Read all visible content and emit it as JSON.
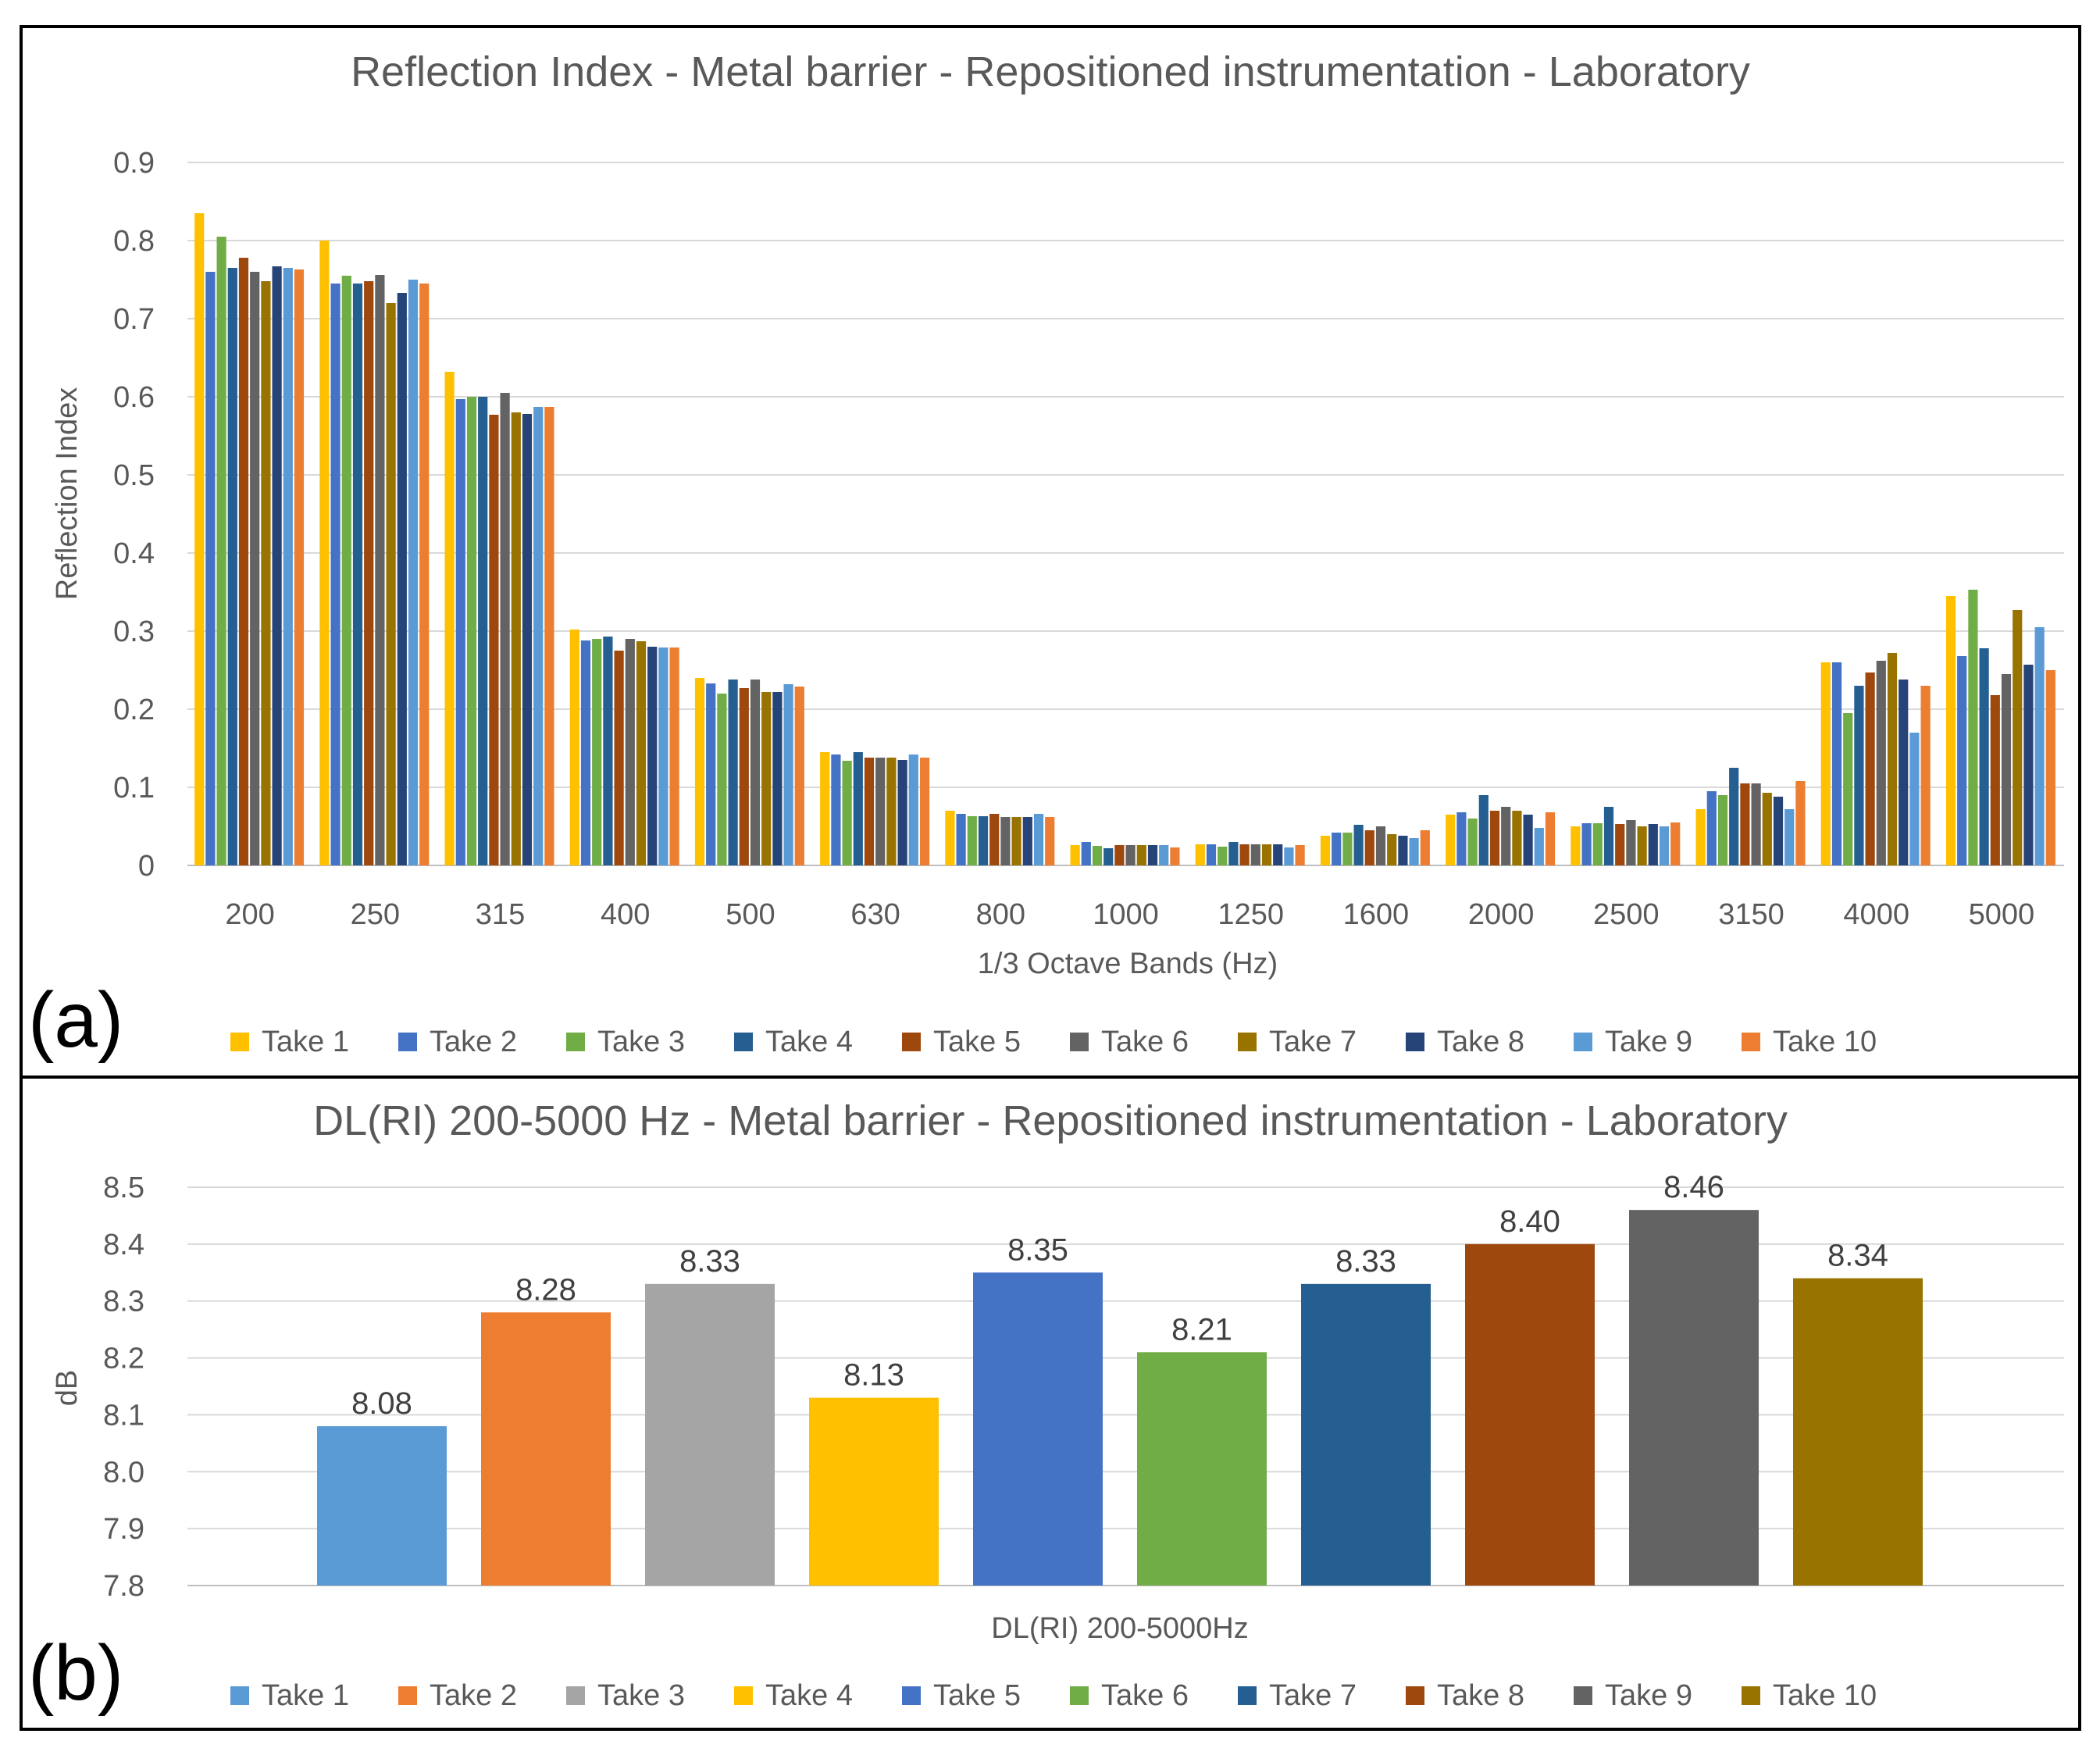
{
  "chart_data": [
    {
      "panel_label": "(a)",
      "type": "bar",
      "title": "Reflection Index - Metal barrier - Repositioned instrumentation - Laboratory",
      "xlabel": "1/3 Octave Bands (Hz)",
      "ylabel": "Reflection Index",
      "ylim": [
        0,
        0.9
      ],
      "yticks": [
        "0",
        "0.1",
        "0.2",
        "0.3",
        "0.4",
        "0.5",
        "0.6",
        "0.7",
        "0.8",
        "0.9"
      ],
      "grid": true,
      "legend_position": "bottom",
      "categories": [
        "200",
        "250",
        "315",
        "400",
        "500",
        "630",
        "800",
        "1000",
        "1250",
        "1600",
        "2000",
        "2500",
        "3150",
        "4000",
        "5000"
      ],
      "series": [
        {
          "name": "Take 1",
          "color": "#FFC000",
          "values": [
            0.835,
            0.8,
            0.632,
            0.302,
            0.24,
            0.145,
            0.07,
            0.026,
            0.027,
            0.038,
            0.065,
            0.05,
            0.072,
            0.26,
            0.345
          ]
        },
        {
          "name": "Take 2",
          "color": "#4472C4",
          "values": [
            0.76,
            0.745,
            0.597,
            0.288,
            0.233,
            0.142,
            0.066,
            0.03,
            0.027,
            0.042,
            0.068,
            0.054,
            0.095,
            0.26,
            0.268
          ]
        },
        {
          "name": "Take 3",
          "color": "#70AD47",
          "values": [
            0.805,
            0.755,
            0.6,
            0.29,
            0.22,
            0.134,
            0.063,
            0.025,
            0.024,
            0.042,
            0.06,
            0.054,
            0.09,
            0.195,
            0.353
          ]
        },
        {
          "name": "Take 4",
          "color": "#255E91",
          "values": [
            0.765,
            0.745,
            0.6,
            0.293,
            0.238,
            0.145,
            0.063,
            0.022,
            0.03,
            0.052,
            0.09,
            0.075,
            0.125,
            0.23,
            0.278
          ]
        },
        {
          "name": "Take 5",
          "color": "#9E480E",
          "values": [
            0.778,
            0.748,
            0.577,
            0.275,
            0.227,
            0.138,
            0.066,
            0.026,
            0.027,
            0.045,
            0.07,
            0.053,
            0.105,
            0.247,
            0.218
          ]
        },
        {
          "name": "Take 6",
          "color": "#636363",
          "values": [
            0.76,
            0.756,
            0.605,
            0.29,
            0.238,
            0.138,
            0.062,
            0.026,
            0.027,
            0.05,
            0.075,
            0.058,
            0.105,
            0.262,
            0.245
          ]
        },
        {
          "name": "Take 7",
          "color": "#997300",
          "values": [
            0.748,
            0.72,
            0.58,
            0.287,
            0.222,
            0.138,
            0.062,
            0.026,
            0.027,
            0.04,
            0.07,
            0.05,
            0.093,
            0.272,
            0.327
          ]
        },
        {
          "name": "Take 8",
          "color": "#264478",
          "values": [
            0.767,
            0.733,
            0.578,
            0.28,
            0.222,
            0.135,
            0.062,
            0.026,
            0.027,
            0.038,
            0.065,
            0.053,
            0.088,
            0.238,
            0.257
          ]
        },
        {
          "name": "Take 9",
          "color": "#5B9BD5",
          "values": [
            0.765,
            0.75,
            0.587,
            0.279,
            0.232,
            0.142,
            0.066,
            0.026,
            0.023,
            0.035,
            0.048,
            0.05,
            0.072,
            0.17,
            0.305
          ]
        },
        {
          "name": "Take 10",
          "color": "#ED7D31",
          "values": [
            0.763,
            0.745,
            0.587,
            0.279,
            0.229,
            0.138,
            0.062,
            0.023,
            0.026,
            0.045,
            0.068,
            0.055,
            0.108,
            0.23,
            0.25
          ]
        }
      ]
    },
    {
      "panel_label": "(b)",
      "type": "bar",
      "title": "DL(RI) 200-5000 Hz - Metal barrier - Repositioned instrumentation - Laboratory",
      "xlabel": "DL(RI) 200-5000Hz",
      "ylabel": "dB",
      "ylim": [
        7.8,
        8.5
      ],
      "yticks": [
        "7.8",
        "7.9",
        "8.0",
        "8.1",
        "8.2",
        "8.3",
        "8.4",
        "8.5"
      ],
      "grid": true,
      "legend_position": "bottom",
      "categories": [
        "DL(RI) 200-5000Hz"
      ],
      "series": [
        {
          "name": "Take 1",
          "color": "#5B9BD5",
          "value": 8.08,
          "label": "8.08"
        },
        {
          "name": "Take 2",
          "color": "#ED7D31",
          "value": 8.28,
          "label": "8.28"
        },
        {
          "name": "Take 3",
          "color": "#A5A5A5",
          "value": 8.33,
          "label": "8.33"
        },
        {
          "name": "Take 4",
          "color": "#FFC000",
          "value": 8.13,
          "label": "8.13"
        },
        {
          "name": "Take 5",
          "color": "#4472C4",
          "value": 8.35,
          "label": "8.35"
        },
        {
          "name": "Take 6",
          "color": "#70AD47",
          "value": 8.21,
          "label": "8.21"
        },
        {
          "name": "Take 7",
          "color": "#255E91",
          "value": 8.33,
          "label": "8.33"
        },
        {
          "name": "Take 8",
          "color": "#9E480E",
          "value": 8.4,
          "label": "8.40"
        },
        {
          "name": "Take 9",
          "color": "#636363",
          "value": 8.46,
          "label": "8.46"
        },
        {
          "name": "Take 10",
          "color": "#997300",
          "value": 8.34,
          "label": "8.34"
        }
      ]
    }
  ]
}
